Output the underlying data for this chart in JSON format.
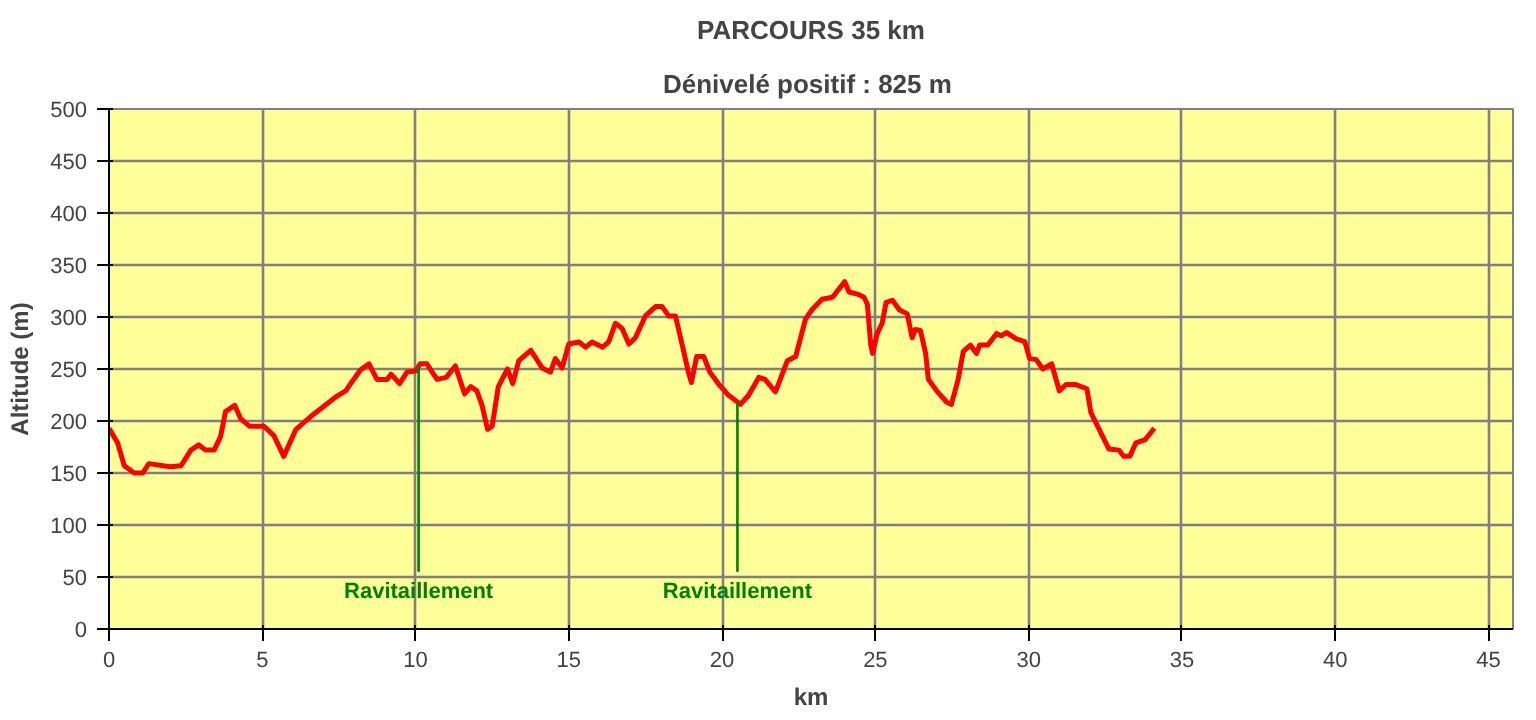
{
  "chart_data": {
    "type": "line",
    "title": "PARCOURS 35 km",
    "subtitle": "Dénivelé positif  : 825 m",
    "xlabel": "km",
    "ylabel": "Altitude (m)",
    "xlim": [
      0,
      45.8
    ],
    "xticks": [
      0,
      5,
      10,
      15,
      20,
      25,
      30,
      35,
      40,
      45
    ],
    "ylim": [
      0,
      500
    ],
    "yticks": [
      0,
      50,
      100,
      150,
      200,
      250,
      300,
      350,
      400,
      450,
      500
    ],
    "grid": true,
    "marker": "none",
    "line_style": "solid",
    "series": [
      {
        "color": "#ff0000",
        "x": [
          0,
          0.28,
          0.5,
          0.82,
          1.1,
          1.3,
          2.0,
          2.35,
          2.67,
          2.93,
          3.15,
          3.43,
          3.64,
          3.8,
          4.1,
          4.3,
          4.58,
          5.05,
          5.38,
          5.7,
          6.1,
          6.57,
          7.44,
          7.72,
          8.2,
          8.48,
          8.74,
          9.07,
          9.2,
          9.48,
          9.72,
          10.0,
          10.15,
          10.37,
          10.7,
          11.0,
          11.3,
          11.6,
          11.8,
          12.0,
          12.17,
          12.35,
          12.5,
          12.7,
          13.0,
          13.17,
          13.37,
          13.76,
          14.13,
          14.4,
          14.56,
          14.78,
          15.0,
          15.33,
          15.54,
          15.76,
          16.1,
          16.3,
          16.52,
          16.74,
          16.96,
          17.17,
          17.5,
          17.83,
          18.04,
          18.26,
          18.48,
          18.7,
          18.9,
          19.0,
          19.17,
          19.4,
          19.6,
          19.9,
          20.2,
          20.6,
          20.87,
          21.2,
          21.4,
          21.74,
          22.13,
          22.4,
          22.72,
          22.93,
          23.26,
          23.6,
          24.0,
          24.14,
          24.42,
          24.63,
          24.74,
          24.85,
          24.91,
          25.06,
          25.22,
          25.35,
          25.56,
          25.78,
          26.04,
          26.2,
          26.3,
          26.47,
          26.64,
          26.73,
          27.0,
          27.33,
          27.48,
          27.7,
          27.87,
          28.1,
          28.3,
          28.4,
          28.67,
          28.95,
          29.1,
          29.28,
          29.6,
          29.88,
          30.03,
          30.25,
          30.46,
          30.75,
          31.0,
          31.22,
          31.54,
          31.9,
          32.03,
          32.3,
          32.62,
          32.95,
          33.1,
          33.3,
          33.5,
          33.8,
          34.1
        ],
        "values": [
          193,
          179,
          157,
          150,
          150,
          159,
          156,
          157,
          172,
          177,
          172,
          172,
          185,
          209,
          215,
          202,
          195,
          195,
          186,
          166,
          192,
          204,
          224,
          229,
          249,
          255,
          240,
          240,
          245,
          236,
          247,
          248,
          255,
          255,
          240,
          242,
          253,
          226,
          233,
          229,
          215,
          192,
          195,
          233,
          250,
          236,
          258,
          268,
          251,
          247,
          260,
          251,
          274,
          276,
          271,
          276,
          271,
          276,
          294,
          289,
          274,
          280,
          301,
          310,
          310,
          301,
          301,
          273,
          247,
          237,
          262,
          262,
          247,
          235,
          225,
          216,
          225,
          242,
          240,
          228,
          258,
          262,
          298,
          307,
          317,
          319,
          334,
          324,
          322,
          319,
          312,
          273,
          265,
          284,
          294,
          314,
          316,
          307,
          303,
          280,
          288,
          287,
          265,
          240,
          229,
          218,
          216,
          240,
          267,
          273,
          265,
          273,
          273,
          284,
          282,
          285,
          279,
          276,
          260,
          259,
          250,
          255,
          229,
          235,
          235,
          231,
          208,
          192,
          173,
          172,
          166,
          166,
          179,
          182,
          193
        ]
      }
    ],
    "ref_lines": [
      {
        "axis": "x",
        "value": 10.1,
        "label": "Ravitaillement",
        "color": "#008000"
      },
      {
        "axis": "x",
        "value": 20.5,
        "label": "Ravitaillement",
        "color": "#008000"
      }
    ]
  }
}
